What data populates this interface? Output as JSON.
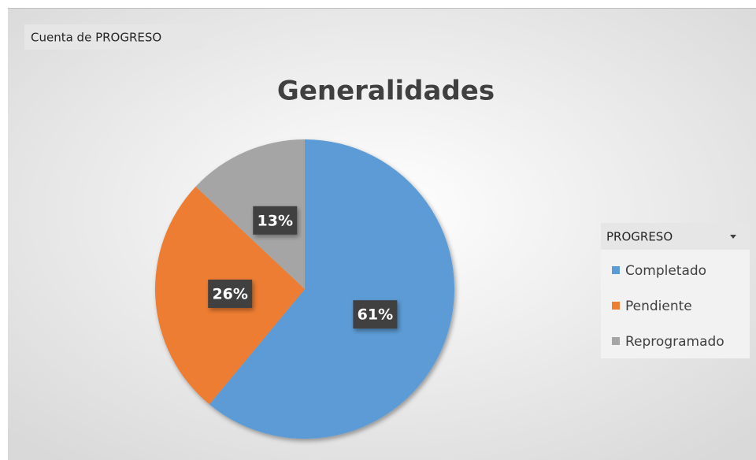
{
  "chart_data": {
    "type": "pie",
    "title": "Generalidades",
    "field_button": "Cuenta de PROGRESO",
    "legend_title": "PROGRESO",
    "legend": "right",
    "categories": [
      "Completado",
      "Pendiente",
      "Reprogramado"
    ],
    "values": [
      61,
      26,
      13
    ],
    "value_labels": [
      "61%",
      "26%",
      "13%"
    ],
    "colors": [
      "#5b9bd5",
      "#ed7d31",
      "#a5a5a5"
    ]
  }
}
